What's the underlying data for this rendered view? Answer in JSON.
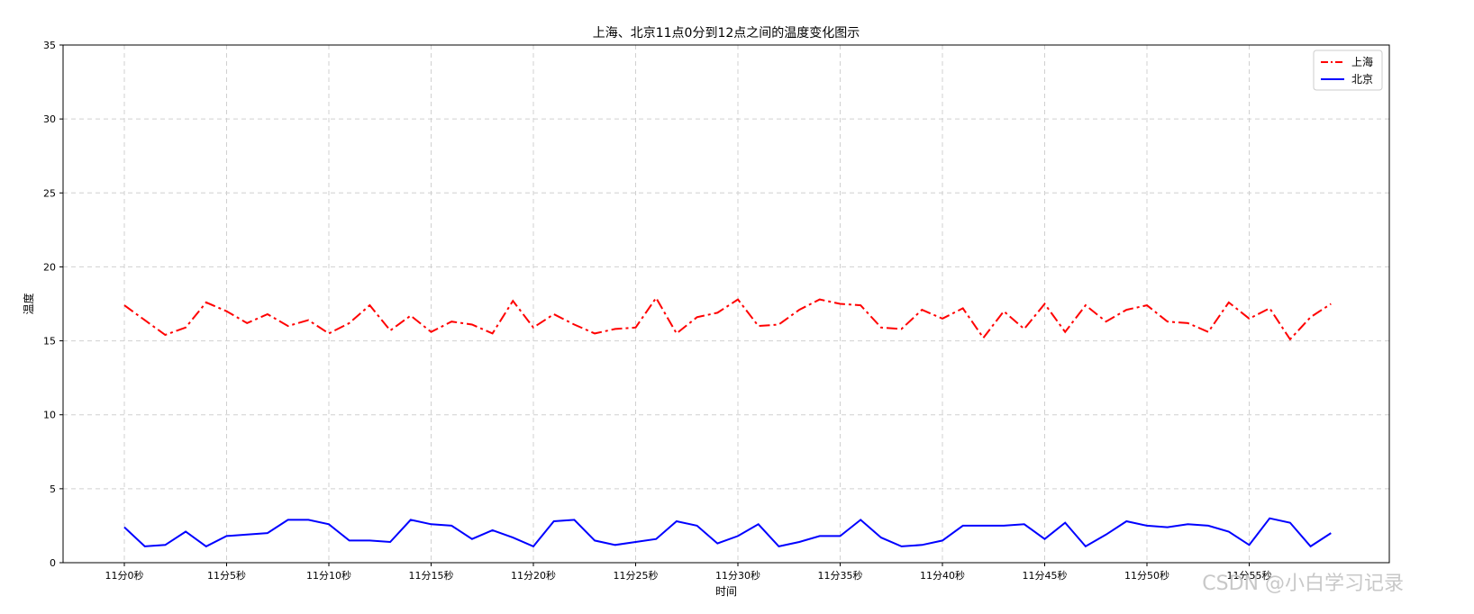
{
  "watermark": "CSDN @小白学习记录",
  "chart_data": {
    "type": "line",
    "title": "上海、北京11点0分到12点之间的温度变化图示",
    "xlabel": "时间",
    "ylabel": "温度",
    "ylim": [
      0,
      35
    ],
    "yticks": [
      0,
      5,
      10,
      15,
      20,
      25,
      30,
      35
    ],
    "xticks": [
      {
        "index": 0,
        "label": "11分0秒"
      },
      {
        "index": 5,
        "label": "11分5秒"
      },
      {
        "index": 10,
        "label": "11分10秒"
      },
      {
        "index": 15,
        "label": "11分15秒"
      },
      {
        "index": 20,
        "label": "11分20秒"
      },
      {
        "index": 25,
        "label": "11分25秒"
      },
      {
        "index": 30,
        "label": "11分30秒"
      },
      {
        "index": 35,
        "label": "11分35秒"
      },
      {
        "index": 40,
        "label": "11分40秒"
      },
      {
        "index": 45,
        "label": "11分45秒"
      },
      {
        "index": 50,
        "label": "11分50秒"
      },
      {
        "index": 55,
        "label": "11分55秒"
      }
    ],
    "grid": true,
    "legend_position": "top-right",
    "series": [
      {
        "name": "上海",
        "color": "#ff0000",
        "line_style": "dash-dot",
        "values": [
          17.4,
          16.4,
          15.4,
          15.9,
          17.6,
          17.0,
          16.2,
          16.8,
          16.0,
          16.4,
          15.5,
          16.2,
          17.4,
          15.7,
          16.7,
          15.6,
          16.3,
          16.1,
          15.5,
          17.7,
          15.9,
          16.8,
          16.1,
          15.5,
          15.8,
          15.9,
          17.9,
          15.5,
          16.6,
          16.9,
          17.8,
          16.0,
          16.1,
          17.1,
          17.8,
          17.5,
          17.4,
          15.9,
          15.8,
          17.1,
          16.5,
          17.2,
          15.2,
          17.0,
          15.8,
          17.5,
          15.6,
          17.4,
          16.3,
          17.1,
          17.4,
          16.3,
          16.2,
          15.6,
          17.6,
          16.5,
          17.2,
          15.1,
          16.6,
          17.5
        ]
      },
      {
        "name": "北京",
        "color": "#0000ff",
        "line_style": "solid",
        "values": [
          2.4,
          1.1,
          1.2,
          2.1,
          1.1,
          1.8,
          1.9,
          2.0,
          2.9,
          2.9,
          2.6,
          1.5,
          1.5,
          1.4,
          2.9,
          2.6,
          2.5,
          1.6,
          2.2,
          1.7,
          1.1,
          2.8,
          2.9,
          1.5,
          1.2,
          1.4,
          1.6,
          2.8,
          2.5,
          1.3,
          1.8,
          2.6,
          1.1,
          1.4,
          1.8,
          1.8,
          2.9,
          1.7,
          1.1,
          1.2,
          1.5,
          2.5,
          2.5,
          2.5,
          2.6,
          1.6,
          2.7,
          1.1,
          1.9,
          2.8,
          2.5,
          2.4,
          2.6,
          2.5,
          2.1,
          1.2,
          3.0,
          2.7,
          1.1,
          2.0
        ]
      }
    ]
  }
}
